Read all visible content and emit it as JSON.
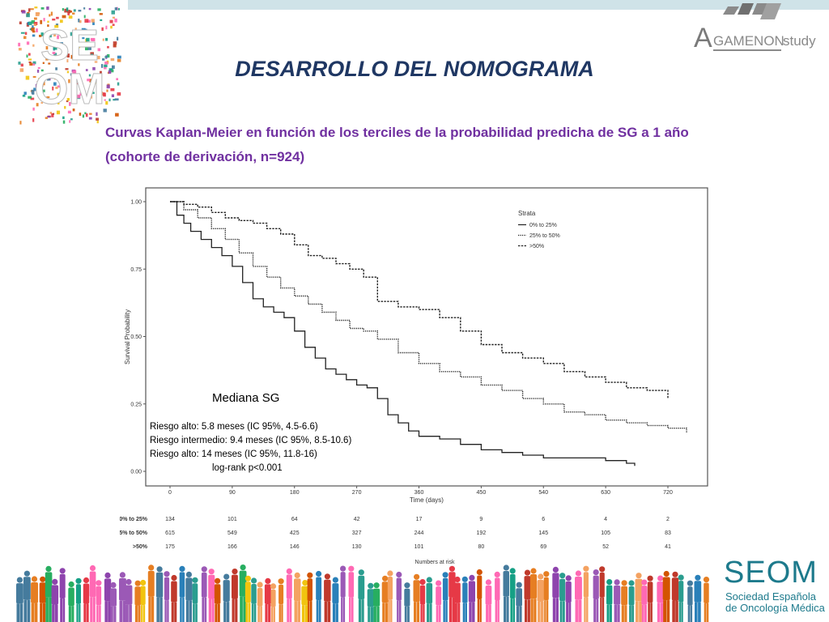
{
  "header": {
    "title": "DESARROLLO DEL NOMOGRAMA",
    "subtitle_line1": "Curvas Kaplan-Meier en función de los terciles de la probabilidad predicha de SG a 1 año",
    "subtitle_line2": "(cohorte de derivación, n=924)"
  },
  "logos": {
    "seom_mark_top": "SE",
    "seom_mark_bottom": "OM",
    "agamenon_initial": "A",
    "agamenon_rest": "GAMENON",
    "agamenon_suffix": "study"
  },
  "footer": {
    "brand": "SEOM",
    "line1": "Sociedad Española",
    "line2": "de Oncología Médica"
  },
  "colors": {
    "title": "#1f3763",
    "subtitle": "#7030a0",
    "brand": "#1d7a8c",
    "top_bar": "#cfe3e8"
  },
  "chart_data": {
    "type": "line",
    "xlabel": "Time (days)",
    "ylabel": "Survival Probability",
    "xlim": [
      0,
      750
    ],
    "ylim": [
      0,
      1.02
    ],
    "x_ticks": [
      0,
      90,
      180,
      270,
      360,
      450,
      540,
      630,
      720
    ],
    "y_ticks": [
      0.0,
      0.25,
      0.5,
      0.75,
      1.0
    ],
    "y_tick_labels": [
      "0.00",
      "0.25",
      "0.50",
      "0.75",
      "1.00"
    ],
    "grid": false,
    "legend": {
      "title": "Strata",
      "placement": "top-right",
      "entries": [
        "0% to 25%",
        "25% to 50%",
        ">50%"
      ]
    },
    "series": [
      {
        "name": "0% to 25%",
        "style": "solid",
        "x": [
          0,
          10,
          20,
          30,
          45,
          60,
          75,
          90,
          105,
          120,
          135,
          150,
          165,
          180,
          195,
          210,
          225,
          240,
          255,
          270,
          285,
          300,
          315,
          330,
          345,
          360,
          390,
          420,
          450,
          480,
          510,
          540,
          570,
          600,
          630,
          660,
          672
        ],
        "y": [
          1.0,
          0.95,
          0.92,
          0.89,
          0.86,
          0.83,
          0.8,
          0.76,
          0.7,
          0.64,
          0.61,
          0.59,
          0.57,
          0.52,
          0.46,
          0.42,
          0.38,
          0.36,
          0.34,
          0.32,
          0.31,
          0.27,
          0.21,
          0.18,
          0.15,
          0.13,
          0.12,
          0.1,
          0.08,
          0.07,
          0.06,
          0.05,
          0.05,
          0.05,
          0.04,
          0.03,
          0.02
        ]
      },
      {
        "name": "25% to 50%",
        "style": "dotted",
        "x": [
          0,
          20,
          40,
          60,
          80,
          100,
          120,
          140,
          160,
          180,
          200,
          220,
          240,
          260,
          280,
          300,
          330,
          360,
          390,
          420,
          450,
          480,
          510,
          540,
          570,
          600,
          630,
          660,
          690,
          720,
          747
        ],
        "y": [
          1.0,
          0.97,
          0.94,
          0.9,
          0.86,
          0.81,
          0.76,
          0.72,
          0.68,
          0.65,
          0.62,
          0.59,
          0.56,
          0.53,
          0.52,
          0.49,
          0.44,
          0.4,
          0.37,
          0.35,
          0.32,
          0.3,
          0.27,
          0.25,
          0.22,
          0.21,
          0.19,
          0.18,
          0.17,
          0.16,
          0.145
        ]
      },
      {
        "name": ">50%",
        "style": "dashed",
        "x": [
          0,
          20,
          40,
          60,
          80,
          100,
          120,
          140,
          160,
          180,
          200,
          220,
          240,
          260,
          280,
          300,
          330,
          360,
          390,
          420,
          450,
          480,
          510,
          540,
          570,
          600,
          630,
          660,
          690,
          720
        ],
        "y": [
          1.0,
          0.99,
          0.98,
          0.96,
          0.94,
          0.93,
          0.92,
          0.9,
          0.88,
          0.84,
          0.8,
          0.79,
          0.77,
          0.75,
          0.72,
          0.63,
          0.61,
          0.6,
          0.57,
          0.52,
          0.47,
          0.44,
          0.42,
          0.4,
          0.37,
          0.35,
          0.33,
          0.31,
          0.3,
          0.27
        ]
      }
    ],
    "annotation": {
      "heading": "Mediana SG",
      "lines": [
        "Riesgo alto: 5.8 meses (IC 95%, 4.5-6.6)",
        "Riesgo intermedio: 9.4 meses (IC 95%, 8.5-10.6)",
        "Riesgo alto: 14 meses (IC 95%, 11.8-16)"
      ],
      "test": "log-rank p<0.001"
    },
    "risk_table": {
      "title": "Numbers at risk",
      "times": [
        0,
        90,
        180,
        270,
        360,
        450,
        540,
        630,
        720
      ],
      "rows": [
        {
          "label": "0% to 25%",
          "counts": [
            134,
            101,
            64,
            42,
            17,
            9,
            6,
            4,
            2
          ]
        },
        {
          "label": "25% to 50%",
          "counts": [
            615,
            549,
            425,
            327,
            244,
            192,
            145,
            105,
            83
          ]
        },
        {
          "label": ">50%",
          "counts": [
            175,
            166,
            146,
            130,
            101,
            80,
            69,
            52,
            41
          ]
        }
      ]
    }
  }
}
